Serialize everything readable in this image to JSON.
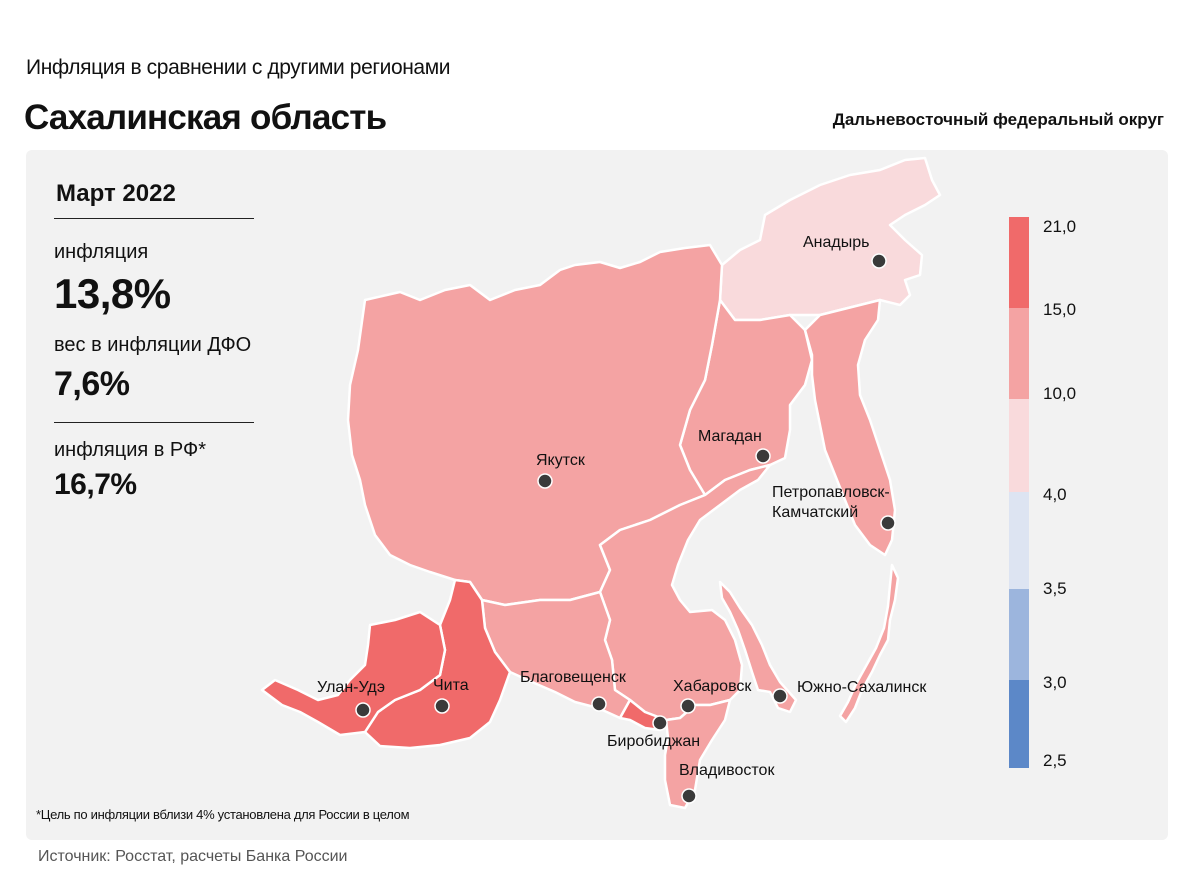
{
  "header": {
    "supertitle": "Инфляция в сравнении с другими регионами",
    "title": "Сахалинская область",
    "district": "Дальневосточный федеральный округ"
  },
  "stats": {
    "period": "Март 2022",
    "inflation_label": "инфляция",
    "inflation_value": "13,8%",
    "weight_label": "вес в инфляции ДФО",
    "weight_value": "7,6%",
    "rf_label": "инфляция в РФ*",
    "rf_value": "16,7%"
  },
  "footnote": "*Цель по инфляции вблизи 4% установлена для России в целом",
  "source": "Источник: Росстат, расчеты Банка России",
  "colors": {
    "above_15": "#f06a6a",
    "from_10_to_15": "#f4a3a3",
    "from_4_to_10": "#f9dadc",
    "from_3_5_to_4": "#dde4f2",
    "from_3_to_3_5": "#9cb5dd",
    "below_3": "#5c88c8",
    "panel": "#f2f2f2"
  },
  "scale": {
    "ticks": [
      "21,0",
      "15,0",
      "10,0",
      "4,0",
      "3,5",
      "3,0",
      "2,5"
    ]
  },
  "cities": [
    {
      "name": "Анадырь"
    },
    {
      "name": "Магадан"
    },
    {
      "name": "Якутск"
    },
    {
      "name": "Петропавловск-"
    },
    {
      "name": "Камчатский"
    },
    {
      "name": "Улан-Удэ"
    },
    {
      "name": "Чита"
    },
    {
      "name": "Благовещенск"
    },
    {
      "name": "Хабаровск"
    },
    {
      "name": "Южно-Сахалинск"
    },
    {
      "name": "Биробиджан"
    },
    {
      "name": "Владивосток"
    }
  ]
}
